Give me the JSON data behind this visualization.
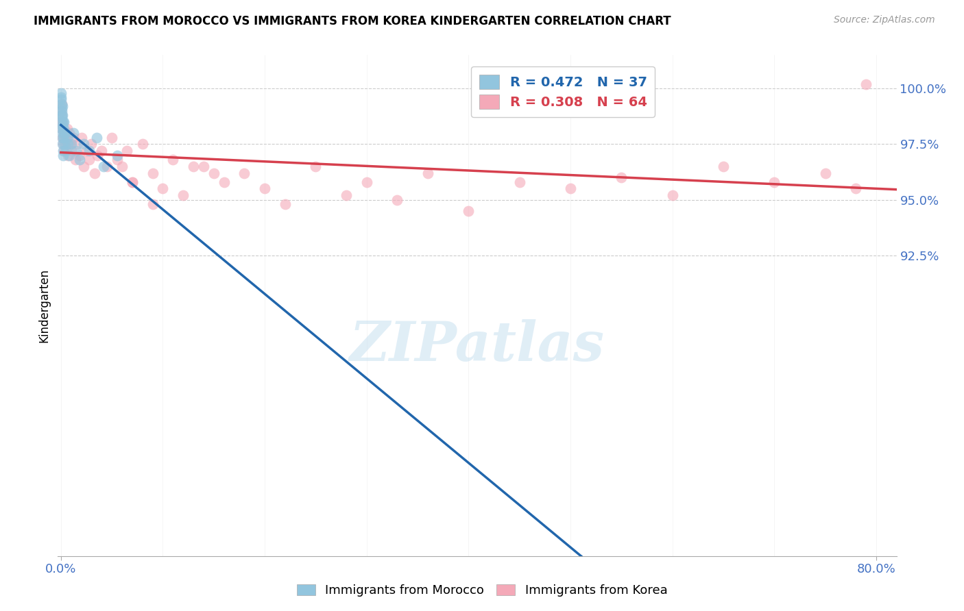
{
  "title": "IMMIGRANTS FROM MOROCCO VS IMMIGRANTS FROM KOREA KINDERGARTEN CORRELATION CHART",
  "source": "Source: ZipAtlas.com",
  "ylabel": "Kindergarten",
  "ymin": 79.0,
  "ymax": 101.5,
  "xmin": -0.003,
  "xmax": 0.82,
  "legend_blue_label": "R = 0.472   N = 37",
  "legend_pink_label": "R = 0.308   N = 64",
  "blue_color": "#92c5de",
  "pink_color": "#f4a9b8",
  "blue_line_color": "#2166ac",
  "pink_line_color": "#d6404e",
  "ytick_values": [
    92.5,
    95.0,
    97.5,
    100.0
  ],
  "ytick_color": "#4472C4",
  "grid_color": "#cccccc",
  "watermark_text": "ZIPatlas",
  "background_color": "#ffffff",
  "morocco_x": [
    0.0002,
    0.0003,
    0.0004,
    0.0005,
    0.0006,
    0.0007,
    0.0008,
    0.0009,
    0.001,
    0.001,
    0.0012,
    0.0013,
    0.0015,
    0.0016,
    0.0017,
    0.0018,
    0.002,
    0.002,
    0.0022,
    0.0025,
    0.003,
    0.003,
    0.0035,
    0.004,
    0.005,
    0.006,
    0.007,
    0.008,
    0.01,
    0.012,
    0.015,
    0.018,
    0.022,
    0.028,
    0.035,
    0.042,
    0.055
  ],
  "morocco_y": [
    99.8,
    99.5,
    99.6,
    99.3,
    98.8,
    99.1,
    98.5,
    99.0,
    98.2,
    98.7,
    97.8,
    98.3,
    99.2,
    98.0,
    97.5,
    98.8,
    97.2,
    98.5,
    97.0,
    98.2,
    97.8,
    98.5,
    97.5,
    98.0,
    97.2,
    97.8,
    97.5,
    97.0,
    97.5,
    98.0,
    97.2,
    96.8,
    97.5,
    97.2,
    97.8,
    96.5,
    97.0
  ],
  "korea_x": [
    0.0002,
    0.0004,
    0.0006,
    0.0008,
    0.001,
    0.0012,
    0.0015,
    0.002,
    0.0025,
    0.003,
    0.004,
    0.005,
    0.006,
    0.007,
    0.008,
    0.009,
    0.01,
    0.012,
    0.014,
    0.016,
    0.018,
    0.02,
    0.022,
    0.025,
    0.028,
    0.03,
    0.033,
    0.036,
    0.04,
    0.045,
    0.05,
    0.055,
    0.06,
    0.065,
    0.07,
    0.08,
    0.09,
    0.1,
    0.11,
    0.12,
    0.14,
    0.16,
    0.18,
    0.2,
    0.22,
    0.25,
    0.28,
    0.3,
    0.33,
    0.36,
    0.4,
    0.45,
    0.5,
    0.55,
    0.6,
    0.65,
    0.7,
    0.75,
    0.78,
    0.79,
    0.13,
    0.07,
    0.15,
    0.09
  ],
  "korea_y": [
    98.5,
    99.0,
    98.2,
    98.8,
    99.3,
    97.8,
    98.5,
    97.5,
    98.0,
    97.2,
    97.8,
    97.5,
    98.2,
    97.0,
    98.0,
    97.5,
    97.2,
    97.8,
    96.8,
    97.5,
    97.0,
    97.8,
    96.5,
    97.2,
    96.8,
    97.5,
    96.2,
    97.0,
    97.2,
    96.5,
    97.8,
    96.8,
    96.5,
    97.2,
    95.8,
    97.5,
    96.2,
    95.5,
    96.8,
    95.2,
    96.5,
    95.8,
    96.2,
    95.5,
    94.8,
    96.5,
    95.2,
    95.8,
    95.0,
    96.2,
    94.5,
    95.8,
    95.5,
    96.0,
    95.2,
    96.5,
    95.8,
    96.2,
    95.5,
    100.2,
    96.5,
    95.8,
    96.2,
    94.8
  ]
}
